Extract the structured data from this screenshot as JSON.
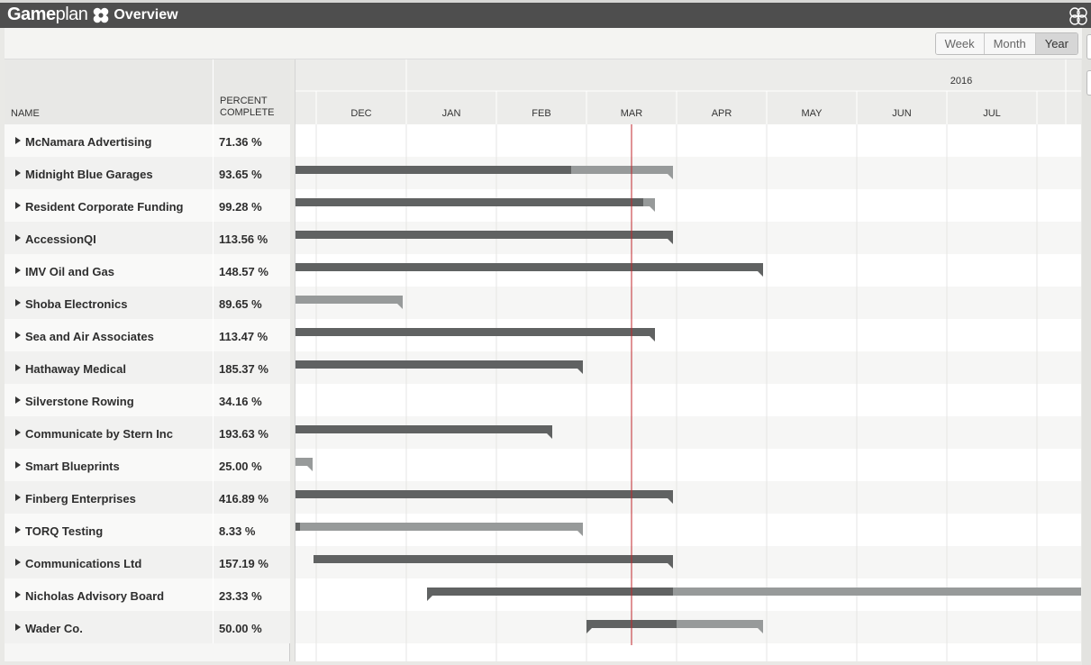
{
  "app": {
    "brand_bold": "Game",
    "brand_light": "plan",
    "view_title": "Overview"
  },
  "view_modes": {
    "items": [
      "Week",
      "Month",
      "Year"
    ],
    "active": "Year"
  },
  "columns": {
    "name": "NAME",
    "percent_line1": "PERCENT",
    "percent_line2": "COMPLETE"
  },
  "timeline": {
    "year_label": "2016",
    "months": [
      "DEC",
      "JAN",
      "FEB",
      "MAR",
      "APR",
      "MAY",
      "JUN",
      "JUL"
    ],
    "today_month_offset": 3.5
  },
  "projects": [
    {
      "name": "McNamara Advertising",
      "percent": "71.36 %",
      "start": null,
      "split": null,
      "end": null
    },
    {
      "name": "Midnight Blue Garages",
      "percent": "93.65 %",
      "start": -0.23,
      "split": 2.83,
      "end": 3.96
    },
    {
      "name": "Resident Corporate Funding",
      "percent": "99.28 %",
      "start": -0.23,
      "split": 3.63,
      "end": 3.76
    },
    {
      "name": "AccessionQI",
      "percent": "113.56 %",
      "start": -0.23,
      "split": 3.96,
      "end": 3.96
    },
    {
      "name": "IMV Oil and Gas",
      "percent": "148.57 %",
      "start": -0.23,
      "split": 4.96,
      "end": 4.96
    },
    {
      "name": "Shoba Electronics",
      "percent": "89.65 %",
      "start": -0.23,
      "split": -0.23,
      "end": 0.96
    },
    {
      "name": "Sea and Air Associates",
      "percent": "113.47 %",
      "start": -0.23,
      "split": 3.76,
      "end": 3.76
    },
    {
      "name": "Hathaway Medical",
      "percent": "185.37 %",
      "start": -0.23,
      "split": 2.96,
      "end": 2.96
    },
    {
      "name": "Silverstone Rowing",
      "percent": "34.16 %",
      "start": null,
      "split": null,
      "end": null
    },
    {
      "name": "Communicate by Stern Inc",
      "percent": "193.63 %",
      "start": -0.23,
      "split": 2.62,
      "end": 2.62
    },
    {
      "name": "Smart Blueprints",
      "percent": "25.00 %",
      "start": -0.23,
      "split": -0.23,
      "end": -0.04
    },
    {
      "name": "Finberg Enterprises",
      "percent": "416.89 %",
      "start": -0.23,
      "split": 3.96,
      "end": 3.96
    },
    {
      "name": "TORQ Testing",
      "percent": "8.33 %",
      "start": -0.23,
      "split": -0.18,
      "end": 2.96
    },
    {
      "name": "Communications Ltd",
      "percent": "157.19 %",
      "start": -0.03,
      "split": 3.96,
      "end": 3.96
    },
    {
      "name": "Nicholas Advisory Board",
      "percent": "23.33 %",
      "start": 1.23,
      "split": 3.96,
      "end": 8.5
    },
    {
      "name": "Wader Co.",
      "percent": "50.00 %",
      "start": 3.0,
      "split": 4.0,
      "end": 4.96
    }
  ],
  "colors": {
    "done": "#606262",
    "remaining": "#979a9a",
    "today": "#c0262b"
  }
}
